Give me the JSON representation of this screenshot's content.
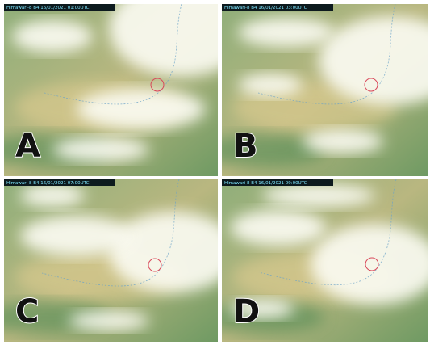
{
  "panels": [
    {
      "label": "A",
      "timestamp": "Himawari-8 B4 16/01/2021 01:00UTC"
    },
    {
      "label": "B",
      "timestamp": "Himawari-8 B4 16/01/2021 03:00UTC"
    },
    {
      "label": "C",
      "timestamp": "Himawari-8 B4 16/01/2021 07:00UTC"
    },
    {
      "label": "D",
      "timestamp": "Himawari-8 B4 16/01/2021 09:00UTC"
    }
  ]
}
